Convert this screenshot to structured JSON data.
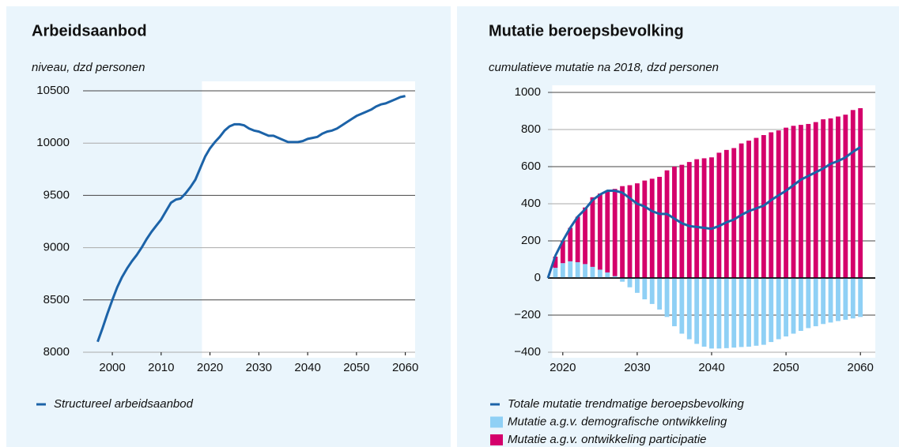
{
  "chart_data": [
    {
      "type": "line",
      "title": "Arbeidsaanbod",
      "subtitle": "niveau, dzd personen",
      "x": [
        1997,
        1998,
        1999,
        2000,
        2001,
        2002,
        2003,
        2004,
        2005,
        2006,
        2007,
        2008,
        2009,
        2010,
        2011,
        2012,
        2013,
        2014,
        2015,
        2016,
        2017,
        2018,
        2019,
        2020,
        2021,
        2022,
        2023,
        2024,
        2025,
        2026,
        2027,
        2028,
        2029,
        2030,
        2031,
        2032,
        2033,
        2034,
        2035,
        2036,
        2037,
        2038,
        2039,
        2040,
        2041,
        2042,
        2043,
        2044,
        2045,
        2046,
        2047,
        2048,
        2049,
        2050,
        2051,
        2052,
        2053,
        2054,
        2055,
        2056,
        2057,
        2058,
        2059,
        2060
      ],
      "series": [
        {
          "name": "Structureel arbeidsaanbod",
          "color": "#1c63a8",
          "values": [
            8100,
            8230,
            8370,
            8500,
            8620,
            8720,
            8800,
            8870,
            8930,
            9000,
            9080,
            9150,
            9210,
            9270,
            9350,
            9430,
            9460,
            9470,
            9520,
            9580,
            9650,
            9760,
            9870,
            9950,
            10010,
            10060,
            10120,
            10160,
            10180,
            10180,
            10170,
            10140,
            10120,
            10110,
            10090,
            10070,
            10070,
            10050,
            10030,
            10010,
            10010,
            10010,
            10020,
            10040,
            10050,
            10060,
            10090,
            10110,
            10120,
            10140,
            10170,
            10200,
            10230,
            10260,
            10280,
            10300,
            10320,
            10350,
            10370,
            10380,
            10400,
            10420,
            10440,
            10450
          ]
        }
      ],
      "xlim": [
        1994,
        2062
      ],
      "xticks": [
        2000,
        2010,
        2020,
        2030,
        2040,
        2050,
        2060
      ],
      "ylim": [
        8000,
        10500
      ],
      "yticks": [
        8000,
        8500,
        9000,
        9500,
        10000,
        10500
      ],
      "grid": true,
      "highlight_from": 2019
    },
    {
      "type": "bar",
      "title": "Mutatie beroepsbevolking",
      "subtitle": "cumulatieve mutatie na 2018, dzd personen",
      "x": [
        2018,
        2019,
        2020,
        2021,
        2022,
        2023,
        2024,
        2025,
        2026,
        2027,
        2028,
        2029,
        2030,
        2031,
        2032,
        2033,
        2034,
        2035,
        2036,
        2037,
        2038,
        2039,
        2040,
        2041,
        2042,
        2043,
        2044,
        2045,
        2046,
        2047,
        2048,
        2049,
        2050,
        2051,
        2052,
        2053,
        2054,
        2055,
        2056,
        2057,
        2058,
        2059,
        2060
      ],
      "series": [
        {
          "name": "Totale mutatie trendmatige beroepsbevolking",
          "type": "line",
          "color": "#1c63a8",
          "values": [
            0,
            120,
            200,
            270,
            330,
            370,
            420,
            450,
            470,
            470,
            460,
            430,
            400,
            385,
            360,
            345,
            345,
            320,
            295,
            280,
            275,
            270,
            265,
            280,
            300,
            315,
            340,
            360,
            375,
            390,
            420,
            445,
            470,
            500,
            530,
            550,
            570,
            590,
            615,
            630,
            650,
            680,
            705
          ]
        },
        {
          "name": "Mutatie a.g.v. demografische ontwikkeling",
          "type": "bar",
          "color": "#8fd0f5",
          "values": [
            0,
            55,
            80,
            90,
            85,
            75,
            60,
            45,
            30,
            10,
            -20,
            -50,
            -80,
            -115,
            -140,
            -170,
            -210,
            -260,
            -300,
            -330,
            -355,
            -370,
            -380,
            -380,
            -378,
            -375,
            -372,
            -370,
            -365,
            -360,
            -345,
            -330,
            -315,
            -300,
            -285,
            -270,
            -260,
            -248,
            -240,
            -232,
            -225,
            -218,
            -210
          ]
        },
        {
          "name": "Mutatie a.g.v. ontwikkeling participatie",
          "type": "bar",
          "color": "#d4006b",
          "values": [
            0,
            60,
            120,
            180,
            245,
            305,
            375,
            410,
            440,
            470,
            495,
            500,
            510,
            525,
            535,
            545,
            580,
            600,
            610,
            625,
            640,
            645,
            650,
            675,
            690,
            700,
            725,
            740,
            755,
            770,
            785,
            795,
            810,
            820,
            825,
            830,
            840,
            855,
            860,
            870,
            880,
            905,
            915
          ]
        }
      ],
      "xlim": [
        2018,
        2062
      ],
      "xticks": [
        2020,
        2030,
        2040,
        2050,
        2060
      ],
      "ylim": [
        -400,
        1000
      ],
      "yticks": [
        {
          "value": -400,
          "label": "−400"
        },
        {
          "value": -200,
          "label": "−200"
        },
        0,
        200,
        400,
        600,
        800,
        1000
      ],
      "grid": true,
      "highlight_from": 2019
    }
  ]
}
